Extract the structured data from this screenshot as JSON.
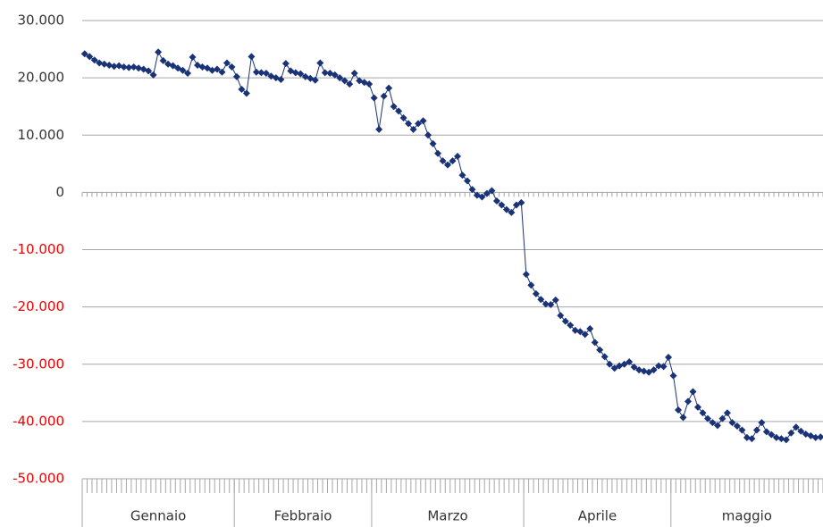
{
  "chart_data": {
    "type": "line",
    "categories": [
      "Gennaio",
      null,
      null,
      null,
      null,
      null,
      null,
      null,
      null,
      null,
      null,
      null,
      null,
      null,
      null,
      null,
      null,
      null,
      null,
      null,
      null,
      null,
      null,
      null,
      null,
      null,
      null,
      null,
      null,
      null,
      null,
      "Febbraio",
      null,
      null,
      null,
      null,
      null,
      null,
      null,
      null,
      null,
      null,
      null,
      null,
      null,
      null,
      null,
      null,
      null,
      null,
      null,
      null,
      null,
      null,
      null,
      null,
      null,
      null,
      null,
      "Marzo",
      null,
      null,
      null,
      null,
      null,
      null,
      null,
      null,
      null,
      null,
      null,
      null,
      null,
      null,
      null,
      null,
      null,
      null,
      null,
      null,
      null,
      null,
      null,
      null,
      null,
      null,
      null,
      null,
      null,
      null,
      "Aprile",
      null,
      null,
      null,
      null,
      null,
      null,
      null,
      null,
      null,
      null,
      null,
      null,
      null,
      null,
      null,
      null,
      null,
      null,
      null,
      null,
      null,
      null,
      null,
      null,
      null,
      null,
      null,
      null,
      null,
      "maggio",
      null,
      null,
      null,
      null,
      null,
      null,
      null,
      null,
      null,
      null,
      null,
      null,
      null,
      null,
      null,
      null,
      null,
      null,
      null,
      null,
      null,
      null,
      null,
      null,
      null,
      null,
      null,
      null,
      null,
      null
    ],
    "values": [
      24200,
      23700,
      23100,
      22600,
      22400,
      22200,
      22000,
      22100,
      21900,
      21800,
      21900,
      21700,
      21500,
      21200,
      20500,
      24500,
      23000,
      22400,
      22100,
      21700,
      21300,
      20800,
      23600,
      22200,
      21900,
      21700,
      21300,
      21500,
      21000,
      22600,
      21900,
      20200,
      18000,
      17300,
      23700,
      21000,
      20900,
      20800,
      20300,
      20000,
      19700,
      22500,
      21200,
      20900,
      20700,
      20200,
      19900,
      19600,
      22600,
      20900,
      20800,
      20500,
      20000,
      19500,
      18900,
      20800,
      19500,
      19200,
      18900,
      16500,
      11000,
      16800,
      18200,
      15000,
      14200,
      13000,
      12000,
      11000,
      12000,
      12500,
      10000,
      8500,
      6800,
      5500,
      4800,
      5500,
      6300,
      3000,
      2000,
      500,
      -500,
      -800,
      -200,
      300,
      -1500,
      -2200,
      -3000,
      -3500,
      -2200,
      -1800,
      -14300,
      -16200,
      -17700,
      -18700,
      -19500,
      -19600,
      -18800,
      -21500,
      -22500,
      -23200,
      -24100,
      -24300,
      -24800,
      -23800,
      -26200,
      -27500,
      -28700,
      -30000,
      -30700,
      -30300,
      -30000,
      -29600,
      -30500,
      -31000,
      -31200,
      -31400,
      -31000,
      -30300,
      -30400,
      -28800,
      -32000,
      -38000,
      -39300,
      -36500,
      -34800,
      -37500,
      -38500,
      -39500,
      -40200,
      -40700,
      -39500,
      -38500,
      -40200,
      -40800,
      -41500,
      -42800,
      -43000,
      -41500,
      -40200,
      -41800,
      -42300,
      -42800,
      -43000,
      -43200,
      -42000,
      -41000,
      -41700,
      -42200,
      -42500,
      -42800,
      -42700
    ],
    "color": "#1a3377",
    "ylim": [
      -50000,
      30000
    ],
    "yticks": [
      {
        "value": -50000,
        "label": "-50.000"
      },
      {
        "value": -40000,
        "label": "-40.000"
      },
      {
        "value": -30000,
        "label": "-30.000"
      },
      {
        "value": -20000,
        "label": "-20.000"
      },
      {
        "value": -10000,
        "label": "-10.000"
      },
      0,
      {
        "value": 10000,
        "label": "10.000"
      },
      {
        "value": 20000,
        "label": "20.000"
      },
      {
        "value": 30000,
        "label": "30.000"
      }
    ],
    "grid": true,
    "negative_label_color": "#ee0000",
    "label_color": "#333333"
  }
}
